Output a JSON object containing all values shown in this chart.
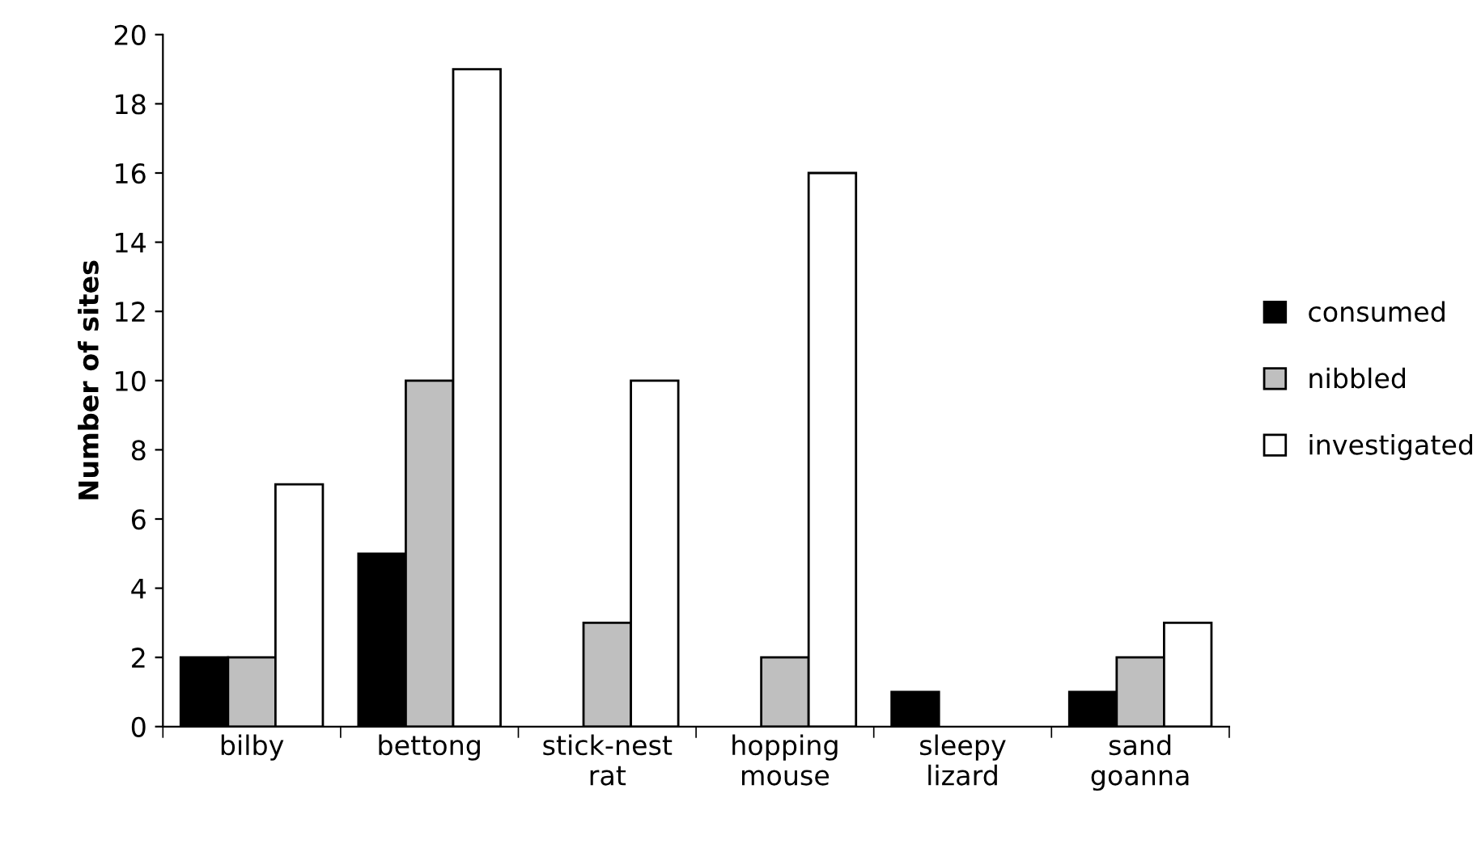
{
  "chart_data": {
    "type": "bar",
    "ylabel": "Number of sites",
    "categories": [
      "bilby",
      "bettong",
      "stick-nest\nrat",
      "hopping\nmouse",
      "sleepy\nlizard",
      "sand\ngoanna"
    ],
    "series": [
      {
        "name": "consumed",
        "color": "#000000",
        "values": [
          2,
          5,
          0,
          0,
          1,
          1
        ]
      },
      {
        "name": "nibbled",
        "color": "#bfbfbf",
        "values": [
          2,
          10,
          3,
          2,
          0,
          2
        ]
      },
      {
        "name": "investigated",
        "color": "#ffffff",
        "values": [
          7,
          19,
          10,
          16,
          0,
          3
        ]
      }
    ],
    "ylim": [
      0,
      20
    ],
    "yticks": [
      0,
      2,
      4,
      6,
      8,
      10,
      12,
      14,
      16,
      18,
      20
    ],
    "grid": false,
    "legend": "right"
  }
}
